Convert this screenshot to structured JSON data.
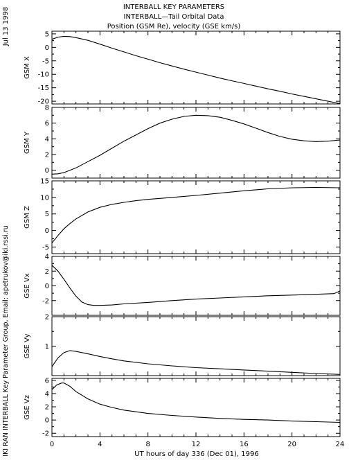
{
  "header": {
    "line1": "INTERBALL KEY PARAMETERS",
    "line2": "INTERBALL—Tail Orbital Data",
    "line3": "Position (GSM Re), velocity (GSE km/s)"
  },
  "side": {
    "date": "Jul 13 1998",
    "credit": "IKI RAN INTERBALL Key Parameter Group, Email: apetrukov@iki.rssi.ru"
  },
  "chart_data": {
    "type": "line",
    "xlabel": "UT hours of day 336 (Dec 01), 1996",
    "xlim": [
      0,
      24
    ],
    "xticks": [
      0,
      4,
      8,
      12,
      16,
      20,
      24
    ],
    "panels": [
      {
        "ylabel": "GSM X",
        "ylim": [
          -21,
          6
        ],
        "yticks": [
          5,
          0,
          -5,
          -10,
          -15,
          -20
        ],
        "x": [
          0,
          0.5,
          1,
          1.5,
          2,
          3,
          4,
          5,
          6,
          7,
          8,
          9,
          10,
          11,
          12,
          13,
          14,
          15,
          16,
          17,
          18,
          19,
          20,
          21,
          22,
          23,
          24
        ],
        "y": [
          3.0,
          3.8,
          4.1,
          4.0,
          3.6,
          2.6,
          1.2,
          -0.3,
          -1.7,
          -3.1,
          -4.4,
          -5.7,
          -6.9,
          -8.1,
          -9.2,
          -10.3,
          -11.4,
          -12.4,
          -13.4,
          -14.4,
          -15.4,
          -16.3,
          -17.3,
          -18.2,
          -19.1,
          -20.0,
          -20.9
        ]
      },
      {
        "ylabel": "GSM Y",
        "ylim": [
          -1,
          8
        ],
        "yticks": [
          8,
          6,
          4,
          2,
          0
        ],
        "x": [
          0,
          0.5,
          1,
          2,
          3,
          4,
          5,
          6,
          7,
          8,
          9,
          10,
          11,
          12,
          13,
          14,
          15,
          16,
          17,
          18,
          19,
          20,
          21,
          22,
          23,
          24
        ],
        "y": [
          -0.5,
          -0.45,
          -0.3,
          0.3,
          1.1,
          1.9,
          2.8,
          3.7,
          4.5,
          5.3,
          6.0,
          6.5,
          6.85,
          7.0,
          6.95,
          6.75,
          6.35,
          5.9,
          5.35,
          4.8,
          4.3,
          3.95,
          3.75,
          3.65,
          3.7,
          3.85
        ]
      },
      {
        "ylabel": "GSM Z",
        "ylim": [
          -7,
          15
        ],
        "yticks": [
          15,
          10,
          5,
          0,
          -5
        ],
        "x": [
          0,
          0.5,
          1,
          1.5,
          2,
          3,
          4,
          5,
          6,
          7,
          8,
          10,
          12,
          14,
          16,
          18,
          20,
          22,
          24
        ],
        "y": [
          -3.8,
          -1.5,
          0.5,
          2.1,
          3.5,
          5.6,
          7.0,
          7.9,
          8.5,
          9.0,
          9.4,
          10.0,
          10.6,
          11.3,
          12.0,
          12.6,
          12.9,
          13.0,
          12.9
        ]
      },
      {
        "ylabel": "GSE Vx",
        "ylim": [
          -4,
          4
        ],
        "yticks": [
          4,
          2,
          0,
          -2
        ],
        "x": [
          0,
          0.5,
          1,
          1.5,
          2,
          2.5,
          3,
          3.5,
          4,
          5,
          6,
          8,
          10,
          12,
          14,
          16,
          18,
          20,
          22,
          23.5,
          24
        ],
        "y": [
          2.8,
          2.0,
          0.9,
          -0.3,
          -1.4,
          -2.2,
          -2.55,
          -2.65,
          -2.65,
          -2.6,
          -2.45,
          -2.25,
          -2.0,
          -1.8,
          -1.65,
          -1.5,
          -1.35,
          -1.25,
          -1.15,
          -1.05,
          -0.7
        ]
      },
      {
        "ylabel": "GSE Vy",
        "ylim": [
          0,
          2
        ],
        "yticks": [
          2,
          1
        ],
        "x": [
          0,
          0.5,
          1,
          1.5,
          2,
          3,
          4,
          5,
          6,
          8,
          10,
          12,
          14,
          16,
          18,
          20,
          22,
          24
        ],
        "y": [
          0.3,
          0.6,
          0.78,
          0.85,
          0.82,
          0.74,
          0.65,
          0.57,
          0.5,
          0.4,
          0.33,
          0.27,
          0.23,
          0.19,
          0.15,
          0.11,
          0.07,
          0.04
        ]
      },
      {
        "ylabel": "GSE Vz",
        "ylim": [
          -2.5,
          6.3
        ],
        "yticks": [
          6,
          4,
          2,
          0,
          -2
        ],
        "x": [
          0,
          0.4,
          0.8,
          1,
          1.5,
          2,
          3,
          4,
          5,
          6,
          8,
          10,
          12,
          14,
          16,
          18,
          20,
          22,
          24
        ],
        "y": [
          4.6,
          5.3,
          5.6,
          5.6,
          5.1,
          4.3,
          3.2,
          2.4,
          1.9,
          1.5,
          1.0,
          0.7,
          0.45,
          0.25,
          0.1,
          0.0,
          -0.15,
          -0.25,
          -0.35
        ]
      }
    ]
  }
}
